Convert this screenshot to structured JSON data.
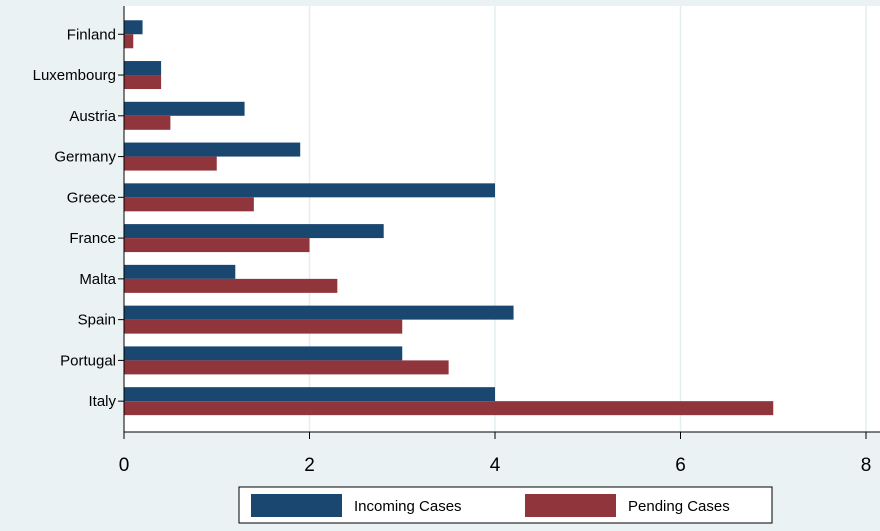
{
  "chart_data": {
    "type": "bar",
    "orientation": "horizontal",
    "categories": [
      "Finland",
      "Luxembourg",
      "Austria",
      "Germany",
      "Greece",
      "France",
      "Malta",
      "Spain",
      "Portugal",
      "Italy"
    ],
    "series": [
      {
        "name": "Incoming Cases",
        "color": "#1a476f",
        "values": [
          0.2,
          0.4,
          1.3,
          1.9,
          4.0,
          2.8,
          1.2,
          4.2,
          3.0,
          4.0
        ]
      },
      {
        "name": "Pending Cases",
        "color": "#90353b",
        "values": [
          0.1,
          0.4,
          0.5,
          1.0,
          1.4,
          2.0,
          2.3,
          3.0,
          3.5,
          7.0
        ]
      }
    ],
    "xlim": [
      0,
      8
    ],
    "xticks": [
      "0",
      "2",
      "4",
      "6",
      "8"
    ],
    "title": "",
    "xlabel": "",
    "ylabel": "",
    "grid": "vertical",
    "legend": "bottom"
  }
}
